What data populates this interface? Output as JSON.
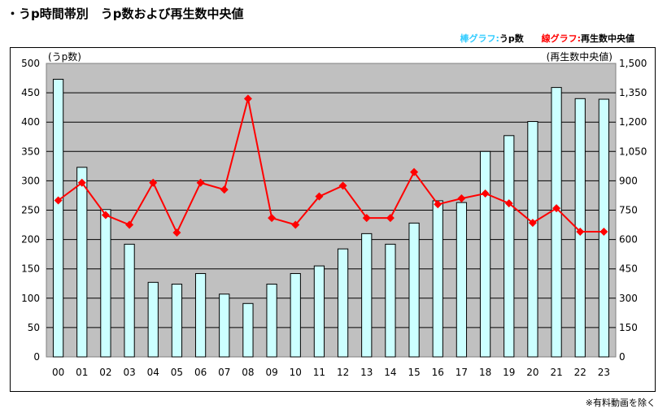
{
  "title": "・うp時間帯別　うp数および再生数中央値",
  "legend": {
    "bar_key": "棒グラフ:",
    "bar_desc": "うp数",
    "line_key": "線グラフ:",
    "line_desc": "再生数中央値"
  },
  "footnote": "※有料動画を除く",
  "colors": {
    "plot_background": "#c0c0c0",
    "bar_fill": "#ccffff",
    "bar_stroke": "#000000",
    "line": "#ff0000",
    "marker": "#ff0000"
  },
  "chart_data": {
    "type": "bar",
    "categories": [
      "00",
      "01",
      "02",
      "03",
      "04",
      "05",
      "06",
      "07",
      "08",
      "09",
      "10",
      "11",
      "12",
      "13",
      "14",
      "15",
      "16",
      "17",
      "18",
      "19",
      "20",
      "21",
      "22",
      "23"
    ],
    "grid": true,
    "y_left": {
      "label": "(うp数)",
      "range": [
        0,
        500
      ],
      "ticks": [
        "0",
        "50",
        "100",
        "150",
        "200",
        "250",
        "300",
        "350",
        "400",
        "450",
        "500"
      ]
    },
    "y_right": {
      "label": "(再生数中央値)",
      "range": [
        0,
        1500
      ],
      "ticks": [
        "0",
        "150",
        "300",
        "450",
        "600",
        "750",
        "900",
        "1,050",
        "1,200",
        "1,350",
        "1,500"
      ]
    },
    "series": [
      {
        "name": "うp数",
        "type": "bar",
        "axis": "left",
        "values": [
          473,
          323,
          251,
          192,
          127,
          124,
          142,
          107,
          91,
          124,
          142,
          155,
          184,
          210,
          192,
          228,
          266,
          263,
          350,
          377,
          401,
          459,
          440,
          439
        ]
      },
      {
        "name": "再生数中央値",
        "type": "line",
        "axis": "right",
        "values": [
          800,
          890,
          725,
          675,
          890,
          635,
          890,
          855,
          1320,
          710,
          675,
          820,
          875,
          710,
          710,
          945,
          780,
          810,
          835,
          785,
          685,
          760,
          640,
          640
        ]
      }
    ]
  }
}
